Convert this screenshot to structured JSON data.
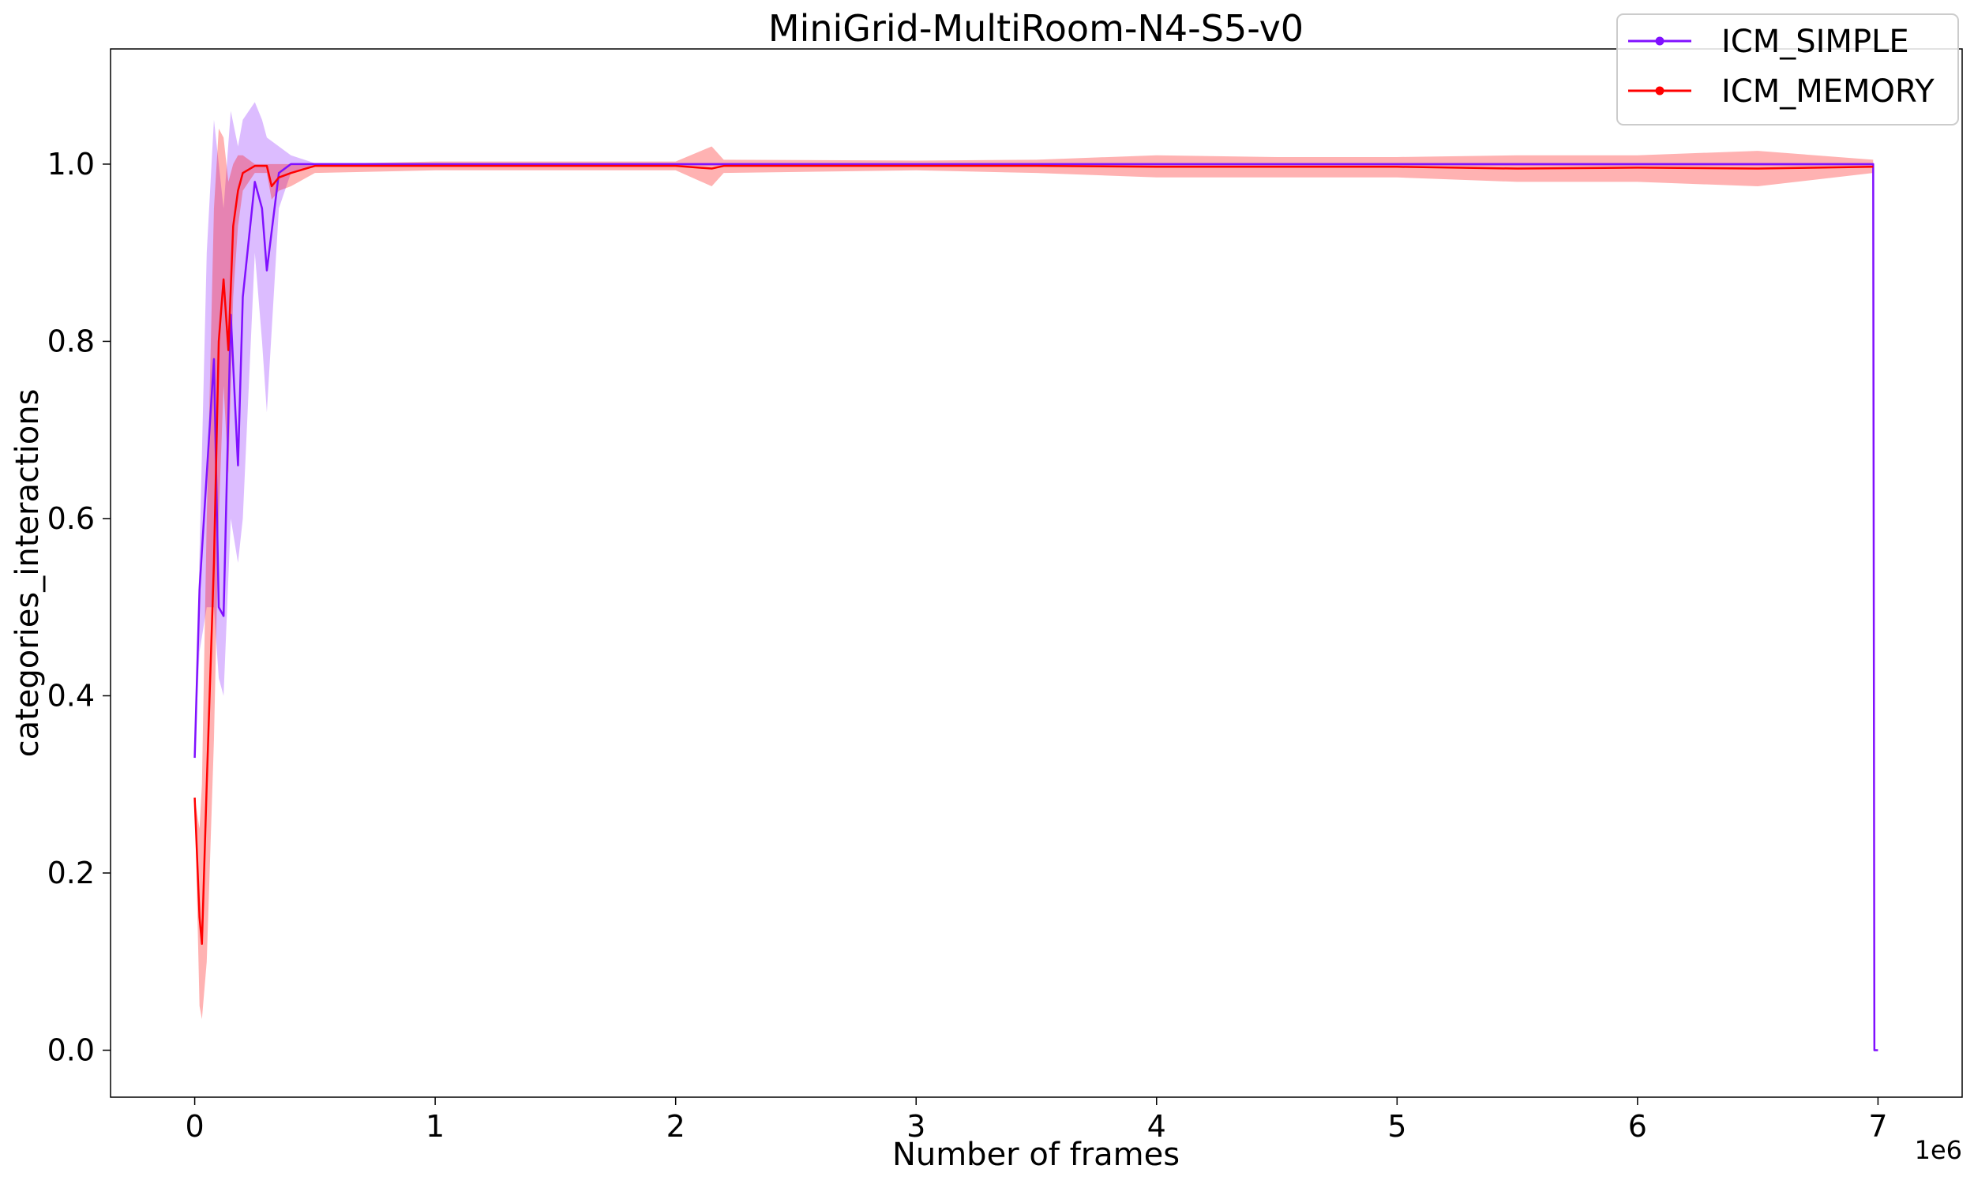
{
  "chart_data": {
    "type": "line",
    "title": "MiniGrid-MultiRoom-N4-S5-v0",
    "xlabel": "Number of frames",
    "ylabel": "categories_interactions",
    "x_exponent_label": "1e6",
    "xlim": [
      -0.35,
      7.35
    ],
    "ylim": [
      -0.053,
      1.13
    ],
    "x_ticks": [
      0,
      1,
      2,
      3,
      4,
      5,
      6,
      7
    ],
    "x_tick_labels": [
      "0",
      "1",
      "2",
      "3",
      "4",
      "5",
      "6",
      "7"
    ],
    "y_ticks": [
      0.0,
      0.2,
      0.4,
      0.6,
      0.8,
      1.0
    ],
    "y_tick_labels": [
      "0.0",
      "0.2",
      "0.4",
      "0.6",
      "0.8",
      "1.0"
    ],
    "grid": false,
    "legend_position": "top-right",
    "series": [
      {
        "name": "ICM_SIMPLE",
        "color": "#8010ff",
        "x": [
          0.0,
          0.02,
          0.05,
          0.08,
          0.1,
          0.12,
          0.15,
          0.18,
          0.2,
          0.25,
          0.28,
          0.3,
          0.35,
          0.4,
          0.5,
          1.0,
          2.0,
          3.0,
          4.0,
          5.0,
          6.0,
          6.98,
          6.985,
          7.0
        ],
        "values": [
          0.33,
          0.52,
          0.65,
          0.78,
          0.5,
          0.49,
          0.83,
          0.66,
          0.85,
          0.98,
          0.95,
          0.88,
          0.99,
          1.0,
          1.0,
          1.0,
          1.0,
          1.0,
          1.0,
          1.0,
          1.0,
          1.0,
          0.0,
          0.0
        ],
        "band_upper": [
          0.33,
          0.56,
          0.9,
          1.05,
          1.0,
          0.95,
          1.06,
          1.02,
          1.05,
          1.07,
          1.05,
          1.03,
          1.02,
          1.01,
          1.001,
          1.001,
          1.001,
          1.001,
          1.001,
          1.001,
          1.001,
          1.001,
          0.0,
          0.0
        ],
        "band_lower": [
          0.33,
          0.45,
          0.5,
          0.5,
          0.42,
          0.4,
          0.6,
          0.55,
          0.6,
          0.9,
          0.8,
          0.72,
          0.95,
          0.99,
          0.998,
          0.998,
          0.998,
          0.998,
          0.998,
          0.998,
          0.998,
          0.998,
          0.0,
          0.0
        ]
      },
      {
        "name": "ICM_MEMORY",
        "color": "#ff0000",
        "x": [
          0.0,
          0.02,
          0.03,
          0.05,
          0.08,
          0.1,
          0.12,
          0.14,
          0.16,
          0.18,
          0.2,
          0.25,
          0.3,
          0.32,
          0.35,
          0.4,
          0.5,
          1.0,
          2.0,
          2.15,
          2.2,
          3.0,
          3.5,
          4.0,
          4.5,
          5.0,
          5.5,
          6.0,
          6.5,
          6.98
        ],
        "values": [
          0.285,
          0.15,
          0.12,
          0.3,
          0.55,
          0.8,
          0.87,
          0.79,
          0.93,
          0.97,
          0.99,
          0.998,
          0.998,
          0.975,
          0.985,
          0.99,
          0.998,
          0.998,
          0.998,
          0.995,
          0.998,
          0.998,
          0.998,
          0.997,
          0.997,
          0.997,
          0.995,
          0.996,
          0.995,
          0.997
        ],
        "band_upper": [
          0.285,
          0.25,
          0.3,
          0.6,
          0.95,
          1.04,
          1.03,
          0.98,
          1.0,
          1.01,
          1.01,
          1.0,
          1.0,
          1.0,
          1.0,
          1.0,
          1.0,
          1.003,
          1.003,
          1.02,
          1.005,
          1.004,
          1.005,
          1.01,
          1.008,
          1.008,
          1.01,
          1.01,
          1.015,
          1.005
        ],
        "band_lower": [
          0.285,
          0.05,
          0.035,
          0.1,
          0.35,
          0.6,
          0.75,
          0.65,
          0.85,
          0.93,
          0.97,
          0.99,
          0.99,
          0.96,
          0.97,
          0.975,
          0.99,
          0.993,
          0.993,
          0.975,
          0.99,
          0.993,
          0.99,
          0.985,
          0.985,
          0.985,
          0.98,
          0.98,
          0.975,
          0.99
        ]
      }
    ]
  }
}
